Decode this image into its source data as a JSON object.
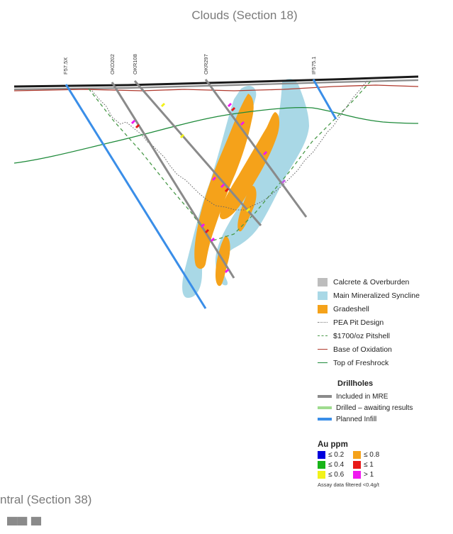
{
  "header": {
    "title": "Clouds (Section 18)"
  },
  "lower_section": {
    "title": "ntral (Section 38)",
    "partial_text": "▀▀ ▀"
  },
  "drillholes": [
    {
      "id": "F57.5X",
      "color": "#3a8ee8"
    },
    {
      "id": "OKD202",
      "color": "#8a8a8a"
    },
    {
      "id": "OKR108",
      "color": "#8a8a8a"
    },
    {
      "id": "OKR297",
      "color": "#8a8a8a"
    },
    {
      "id": "IF575.1",
      "color": "#3a8ee8"
    }
  ],
  "legend": {
    "items": [
      {
        "label": "Calcrete & Overburden",
        "kind": "swatch",
        "color": "#bdbdbd"
      },
      {
        "label": "Main Mineralized Syncline",
        "kind": "swatch",
        "color": "#a9d8e6"
      },
      {
        "label": "Gradeshell",
        "kind": "swatch",
        "color": "#f5a21a"
      },
      {
        "label": "PEA Pit Design",
        "kind": "dotted",
        "color": "#7a7a7a"
      },
      {
        "label": "$1700/oz Pitshell",
        "kind": "dashed",
        "color": "#4a9a4a"
      },
      {
        "label": "Base of Oxidation",
        "kind": "solid",
        "color": "#b03a2e"
      },
      {
        "label": "Top of Freshrock",
        "kind": "solid",
        "color": "#1e8a3a"
      }
    ],
    "drillholes_title": "Drillholes",
    "drillhole_items": [
      {
        "label": "Included in MRE",
        "color": "#8a8a8a"
      },
      {
        "label": "Drilled – awaiting results",
        "color": "#9fdc8f"
      },
      {
        "label": "Planned Infill",
        "color": "#3a8ee8"
      }
    ],
    "au_title": "Au ppm",
    "au_items": [
      {
        "label": "≤ 0.2",
        "color": "#0000dd"
      },
      {
        "label": "≤ 0.8",
        "color": "#f5a21a"
      },
      {
        "label": "≤ 0.4",
        "color": "#18b418"
      },
      {
        "label": "≤ 1",
        "color": "#e81818"
      },
      {
        "label": "≤ 0.6",
        "color": "#f2f21a"
      },
      {
        "label": "> 1",
        "color": "#f018f0"
      }
    ],
    "au_note": "Assay data filtered <0.4g/t"
  }
}
